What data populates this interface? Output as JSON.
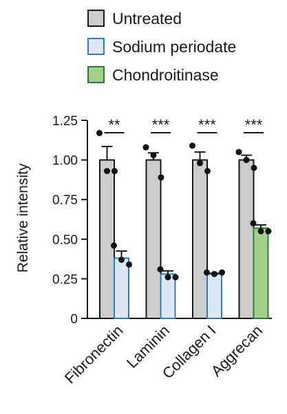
{
  "chart_data": {
    "type": "bar",
    "title": "",
    "xlabel": "",
    "ylabel": "Relative intensity",
    "ylim": [
      0,
      1.25
    ],
    "yticks": [
      "0",
      "0.25",
      "0.50",
      "0.75",
      "1.00",
      "1.25"
    ],
    "ytick_values": [
      0,
      0.25,
      0.5,
      0.75,
      1.0,
      1.25
    ],
    "categories": [
      "Fibronectin",
      "Laminin",
      "Collagen I",
      "Aggrecan"
    ],
    "legend": {
      "placement": "top",
      "entries": [
        {
          "name": "Untreated",
          "fill": "#cccccc",
          "stroke": "#1a1a1a"
        },
        {
          "name": "Sodium periodate",
          "fill": "#dce8f5",
          "stroke": "#2a7fc1"
        },
        {
          "name": "Chondroitinase",
          "fill": "#9fd18b",
          "stroke": "#2f7a3b"
        }
      ]
    },
    "groups": [
      {
        "category": "Fibronectin",
        "significance": "**",
        "bars": [
          {
            "series": "Untreated",
            "value": 1.0,
            "error": 0.085,
            "points": [
              1.17,
              0.93,
              0.93
            ]
          },
          {
            "series": "Sodium periodate",
            "value": 0.38,
            "error": 0.045,
            "points": [
              0.46,
              0.37,
              0.34
            ]
          }
        ]
      },
      {
        "category": "Laminin",
        "significance": "***",
        "bars": [
          {
            "series": "Untreated",
            "value": 1.0,
            "error": 0.045,
            "points": [
              1.08,
              1.03,
              0.89
            ]
          },
          {
            "series": "Sodium periodate",
            "value": 0.28,
            "error": 0.02,
            "points": [
              0.31,
              0.26,
              0.26
            ]
          }
        ]
      },
      {
        "category": "Collagen I",
        "significance": "***",
        "bars": [
          {
            "series": "Untreated",
            "value": 1.0,
            "error": 0.05,
            "points": [
              1.09,
              0.98,
              0.93
            ]
          },
          {
            "series": "Sodium periodate",
            "value": 0.28,
            "error": 0.005,
            "points": [
              0.29,
              0.28,
              0.29
            ]
          }
        ]
      },
      {
        "category": "Aggrecan",
        "significance": "***",
        "bars": [
          {
            "series": "Untreated",
            "value": 1.0,
            "error": 0.03,
            "points": [
              1.05,
              1.0,
              0.95
            ]
          },
          {
            "series": "Chondroitinase",
            "value": 0.57,
            "error": 0.02,
            "points": [
              0.6,
              0.55,
              0.55
            ]
          }
        ]
      }
    ]
  }
}
